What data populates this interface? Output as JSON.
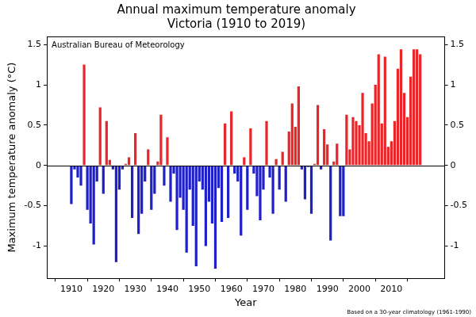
{
  "chart_data": {
    "type": "bar",
    "title": "Annual maximum temperature anomaly",
    "subtitle": "Victoria (1910 to 2019)",
    "source": "Australian Bureau of Meteorology",
    "note": "Based on a 30-year climatology (1961-1990)",
    "x_label": "Year",
    "y_label": "Maximum temperature anomaly (°C)",
    "x": [
      1910,
      1911,
      1912,
      1913,
      1914,
      1915,
      1916,
      1917,
      1918,
      1919,
      1920,
      1921,
      1922,
      1923,
      1924,
      1925,
      1926,
      1927,
      1928,
      1929,
      1930,
      1931,
      1932,
      1933,
      1934,
      1935,
      1936,
      1937,
      1938,
      1939,
      1940,
      1941,
      1942,
      1943,
      1944,
      1945,
      1946,
      1947,
      1948,
      1949,
      1950,
      1951,
      1952,
      1953,
      1954,
      1955,
      1956,
      1957,
      1958,
      1959,
      1960,
      1961,
      1962,
      1963,
      1964,
      1965,
      1966,
      1967,
      1968,
      1969,
      1970,
      1971,
      1972,
      1973,
      1974,
      1975,
      1976,
      1977,
      1978,
      1979,
      1980,
      1981,
      1982,
      1983,
      1984,
      1985,
      1986,
      1987,
      1988,
      1989,
      1990,
      1991,
      1992,
      1993,
      1994,
      1995,
      1996,
      1997,
      1998,
      1999,
      2000,
      2001,
      2002,
      2003,
      2004,
      2005,
      2006,
      2007,
      2008,
      2009,
      2010,
      2011,
      2012,
      2013,
      2014,
      2015,
      2016,
      2017,
      2018,
      2019
    ],
    "values": [
      -0.48,
      -0.05,
      -0.15,
      -0.25,
      1.25,
      -0.55,
      -0.72,
      -0.98,
      -0.2,
      0.72,
      -0.35,
      0.55,
      0.07,
      -0.05,
      -1.2,
      -0.3,
      -0.05,
      0.02,
      0.1,
      -0.65,
      0.4,
      -0.85,
      -0.6,
      -0.2,
      0.2,
      -0.55,
      -0.35,
      0.05,
      0.63,
      -0.25,
      0.35,
      -0.45,
      -0.1,
      -0.8,
      -0.4,
      -0.55,
      -1.08,
      -0.3,
      -0.75,
      -1.25,
      -0.2,
      -0.3,
      -1.0,
      -0.45,
      -0.72,
      -1.28,
      -0.28,
      -0.7,
      0.52,
      -0.65,
      0.67,
      -0.1,
      -0.2,
      -0.87,
      0.1,
      -0.55,
      0.46,
      -0.1,
      -0.38,
      -0.68,
      -0.3,
      0.55,
      -0.15,
      -0.6,
      0.08,
      -0.3,
      0.17,
      -0.45,
      0.42,
      0.77,
      0.48,
      0.98,
      -0.05,
      -0.42,
      -0.02,
      -0.6,
      0.02,
      0.75,
      -0.05,
      0.45,
      0.26,
      -0.93,
      0.05,
      0.27,
      -0.63,
      -0.63,
      0.63,
      0.2,
      0.6,
      0.55,
      0.5,
      0.9,
      0.4,
      0.3,
      0.77,
      1.0,
      1.38,
      0.52,
      1.35,
      0.23,
      0.3,
      0.55,
      1.2,
      1.44,
      0.9,
      0.6,
      1.1,
      1.44,
      1.44,
      1.38
    ],
    "colors": [
      "#2020c8",
      "#2020c8",
      "#2020c8",
      "#2020c8",
      "#e8262a",
      "#2020c8",
      "#2020c8",
      "#2020c8",
      "#2020c8",
      "#e8262a",
      "#2020c8",
      "#e8262a",
      "#e8262a",
      "#2020c8",
      "#2020c8",
      "#2020c8",
      "#2020c8",
      "#e8262a",
      "#e8262a",
      "#2020c8",
      "#e8262a",
      "#2020c8",
      "#2020c8",
      "#2020c8",
      "#e8262a",
      "#2020c8",
      "#2020c8",
      "#e8262a",
      "#e8262a",
      "#2020c8",
      "#e8262a",
      "#2020c8",
      "#2020c8",
      "#2020c8",
      "#2020c8",
      "#2020c8",
      "#2020c8",
      "#2020c8",
      "#2020c8",
      "#2020c8",
      "#2020c8",
      "#2020c8",
      "#2020c8",
      "#2020c8",
      "#2020c8",
      "#2020c8",
      "#2020c8",
      "#2020c8",
      "#e8262a",
      "#2020c8",
      "#e8262a",
      "#2020c8",
      "#2020c8",
      "#2020c8",
      "#e8262a",
      "#2020c8",
      "#e8262a",
      "#2020c8",
      "#2020c8",
      "#2020c8",
      "#2020c8",
      "#e8262a",
      "#2020c8",
      "#2020c8",
      "#e8262a",
      "#2020c8",
      "#e8262a",
      "#2020c8",
      "#e8262a",
      "#e8262a",
      "#e8262a",
      "#e8262a",
      "#2020c8",
      "#2020c8",
      "#2020c8",
      "#2020c8",
      "#e8262a",
      "#e8262a",
      "#2020c8",
      "#e8262a",
      "#e8262a",
      "#2020c8",
      "#e8262a",
      "#e8262a",
      "#2020c8",
      "#2020c8",
      "#e8262a",
      "#e8262a",
      "#e8262a",
      "#e8262a",
      "#e8262a",
      "#e8262a",
      "#e8262a",
      "#e8262a",
      "#e8262a",
      "#e8262a",
      "#e8262a",
      "#e8262a",
      "#e8262a",
      "#e8262a",
      "#e8262a",
      "#e8262a",
      "#e8262a",
      "#e8262a",
      "#e8262a",
      "#e8262a",
      "#e8262a",
      "#e8262a",
      "#e8262a",
      "#e8262a"
    ],
    "xlim": [
      1908,
      2021
    ],
    "xticks": [
      1910,
      1920,
      1930,
      1940,
      1950,
      1960,
      1970,
      1980,
      1990,
      2000,
      2010
    ],
    "ylim": [
      -1.4,
      1.6
    ],
    "yticks": [
      -1,
      -0.5,
      0,
      0.5,
      1,
      1.5
    ],
    "y2lim": [
      -1.4,
      1.6
    ],
    "y2ticks": [
      -1,
      -0.5,
      0,
      0.5,
      1,
      1.5
    ],
    "grid": false,
    "legend": false
  }
}
